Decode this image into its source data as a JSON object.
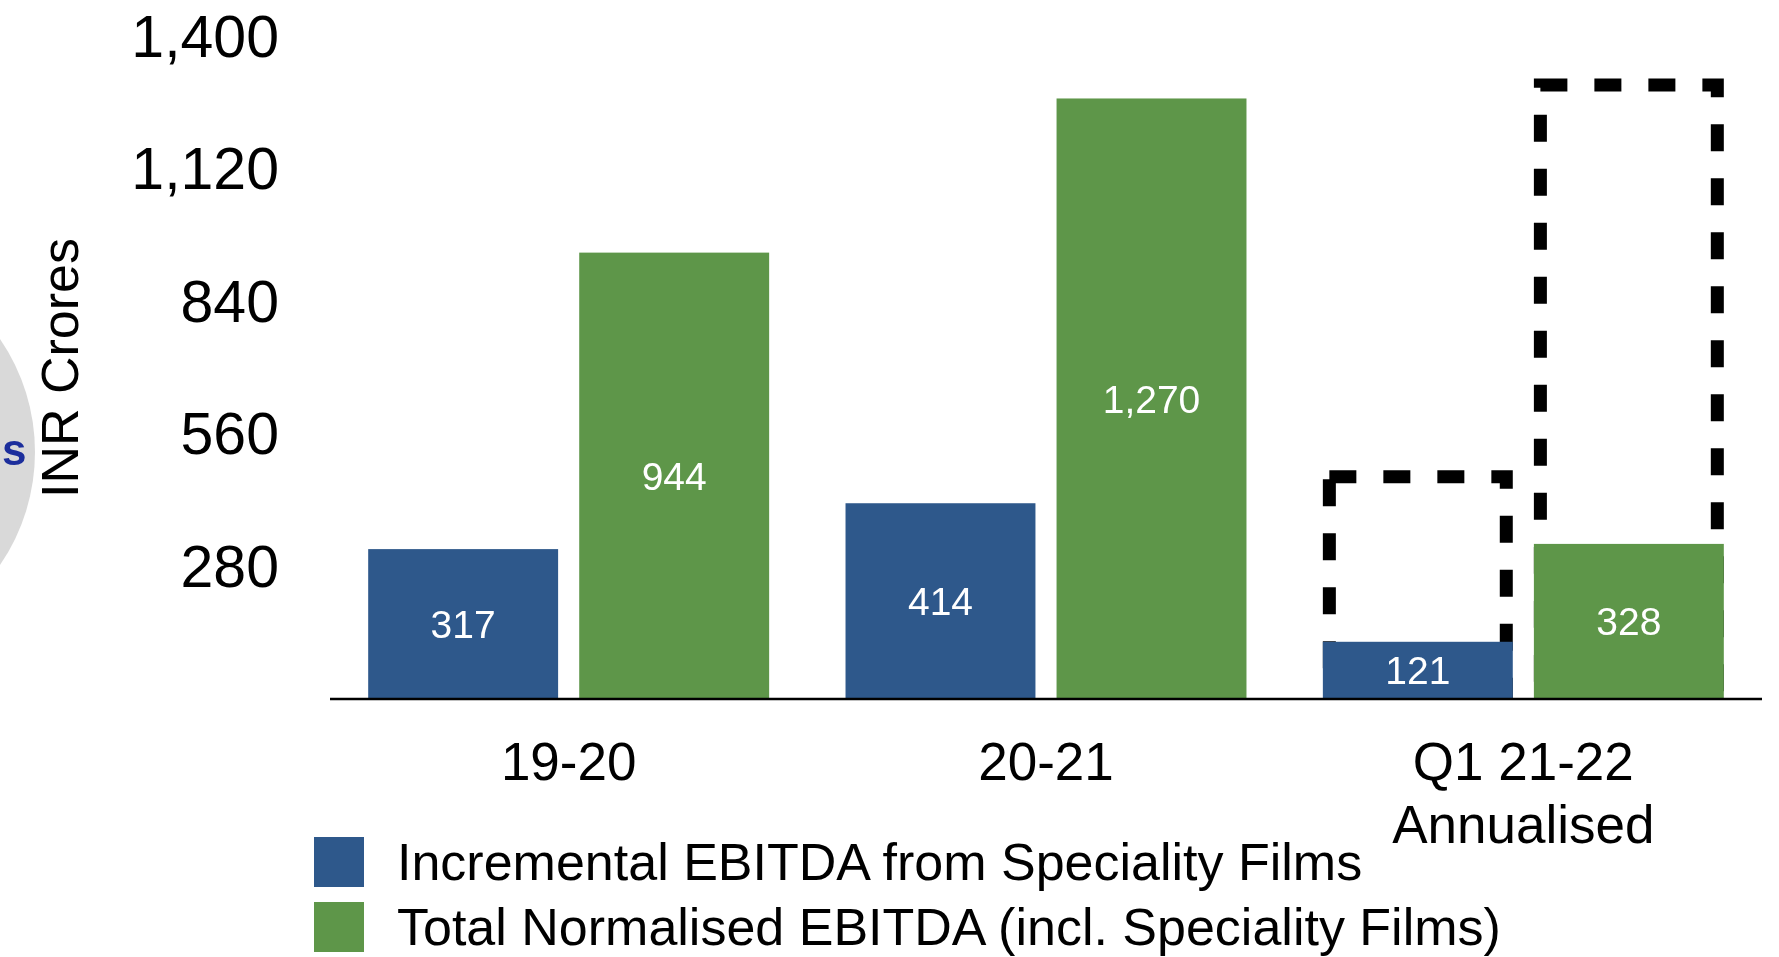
{
  "chart_data": {
    "type": "bar",
    "ylabel": "INR Crores",
    "annotations": [
      "s"
    ],
    "categories": [
      "19-20",
      "20-21",
      "Q1 21-22\nAnnualised"
    ],
    "series": [
      {
        "name": "Incremental EBITDA from Speciality Films",
        "color": "#2e588b",
        "values": [
          317,
          414,
          121
        ],
        "value_labels": [
          "317",
          "414",
          "121"
        ]
      },
      {
        "name": "Total Normalised EBITDA (incl. Speciality Films)",
        "color": "#5e9649",
        "values": [
          944,
          1270,
          328
        ],
        "value_labels": [
          "944",
          "1,270",
          "328"
        ]
      },
      {
        "type": "bar",
        "color": "#000000",
        "line_style": "dashed",
        "values": [
          null,
          null,
          484
        ]
      },
      {
        "type": "bar",
        "color": "#000000",
        "line_style": "dashed",
        "values": [
          null,
          null,
          1312
        ]
      }
    ],
    "ylim": [
      0,
      1400
    ],
    "yticks": [
      280,
      560,
      840,
      {
        "value": 1120,
        "label": "1,120"
      },
      {
        "value": 1400,
        "label": "1,400"
      }
    ],
    "legend": "bottom"
  }
}
